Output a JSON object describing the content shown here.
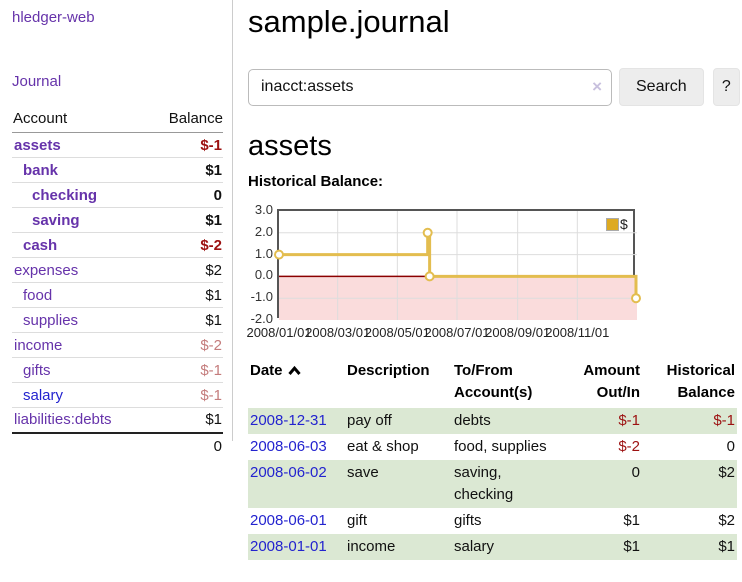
{
  "colors": {
    "link_purple": "#6633aa",
    "link_blue": "#2323cf",
    "neg_strong": "#9c1111",
    "neg_muted": "#c47c7c",
    "row_green": "#dbe8d3",
    "button_bg": "#ededed",
    "clear_x": "#c8c0de",
    "chart_border": "#555555",
    "grid": "#dddddd",
    "gold_fill": "#ddaa22"
  },
  "sidebar": {
    "brand": "hledger-web",
    "journal_link": "Journal",
    "accounts": {
      "header_account": "Account",
      "header_balance": "Balance",
      "rows": [
        {
          "name": "assets",
          "balance": "$-1"
        },
        {
          "name": "bank",
          "balance": "$1"
        },
        {
          "name": "checking",
          "balance": "0"
        },
        {
          "name": "saving",
          "balance": "$1"
        },
        {
          "name": "cash",
          "balance": "$-2"
        },
        {
          "name": "expenses",
          "balance": "$2"
        },
        {
          "name": "food",
          "balance": "$1"
        },
        {
          "name": "supplies",
          "balance": "$1"
        },
        {
          "name": "income",
          "balance": "$-2"
        },
        {
          "name": "gifts",
          "balance": "$-1"
        },
        {
          "name": "salary",
          "balance": "$-1"
        },
        {
          "name": "liabilities:debts",
          "balance": "$1"
        }
      ],
      "total": "0"
    }
  },
  "main": {
    "title": "sample.journal",
    "search": {
      "value": "inacct:assets",
      "clear_glyph": "×",
      "button_label": "Search",
      "help_label": "?"
    },
    "account_heading": "assets",
    "section_heading": "Historical Balance:"
  },
  "chart_data": {
    "type": "line",
    "step": true,
    "title": "Historical Balance",
    "legend": [
      {
        "label": "$",
        "color": "#ddaa22"
      }
    ],
    "x_range": [
      "2008-01-01",
      "2008-12-31"
    ],
    "x_tick_labels": [
      "2008/01/01",
      "2008/03/01",
      "2008/05/01",
      "2008/07/01",
      "2008/09/01",
      "2008/11/01"
    ],
    "y_ticks": [
      3.0,
      2.0,
      1.0,
      0.0,
      -1.0,
      -2.0
    ],
    "ylim": [
      -2.0,
      3.0
    ],
    "points": [
      {
        "date": "2008-01-01",
        "value": 1
      },
      {
        "date": "2008-06-01",
        "value": 2
      },
      {
        "date": "2008-06-03",
        "value": 0
      },
      {
        "date": "2008-12-31",
        "value": -1
      }
    ],
    "line_color": "#e3bd4f",
    "marker_fill": "#ffffff",
    "negative_region_fill": "#fadcdc",
    "zero_line_color": "#8b0000",
    "grid": true,
    "legend_position": "top-right"
  },
  "register": {
    "headers": {
      "date": "Date",
      "description": "Description",
      "account": "To/From Account(s)",
      "amount": "Amount Out/In",
      "balance": "Historical Balance"
    },
    "rows": [
      {
        "date": "2008-12-31",
        "description": "pay off",
        "accounts": "debts",
        "amount": "$-1",
        "balance": "$-1"
      },
      {
        "date": "2008-06-03",
        "description": "eat & shop",
        "accounts": "food, supplies",
        "amount": "$-2",
        "balance": "0"
      },
      {
        "date": "2008-06-02",
        "description": "save",
        "accounts": "saving, checking",
        "amount": "0",
        "balance": "$2"
      },
      {
        "date": "2008-06-01",
        "description": "gift",
        "accounts": "gifts",
        "amount": "$1",
        "balance": "$2"
      },
      {
        "date": "2008-01-01",
        "description": "income",
        "accounts": "salary",
        "amount": "$1",
        "balance": "$1"
      }
    ]
  }
}
